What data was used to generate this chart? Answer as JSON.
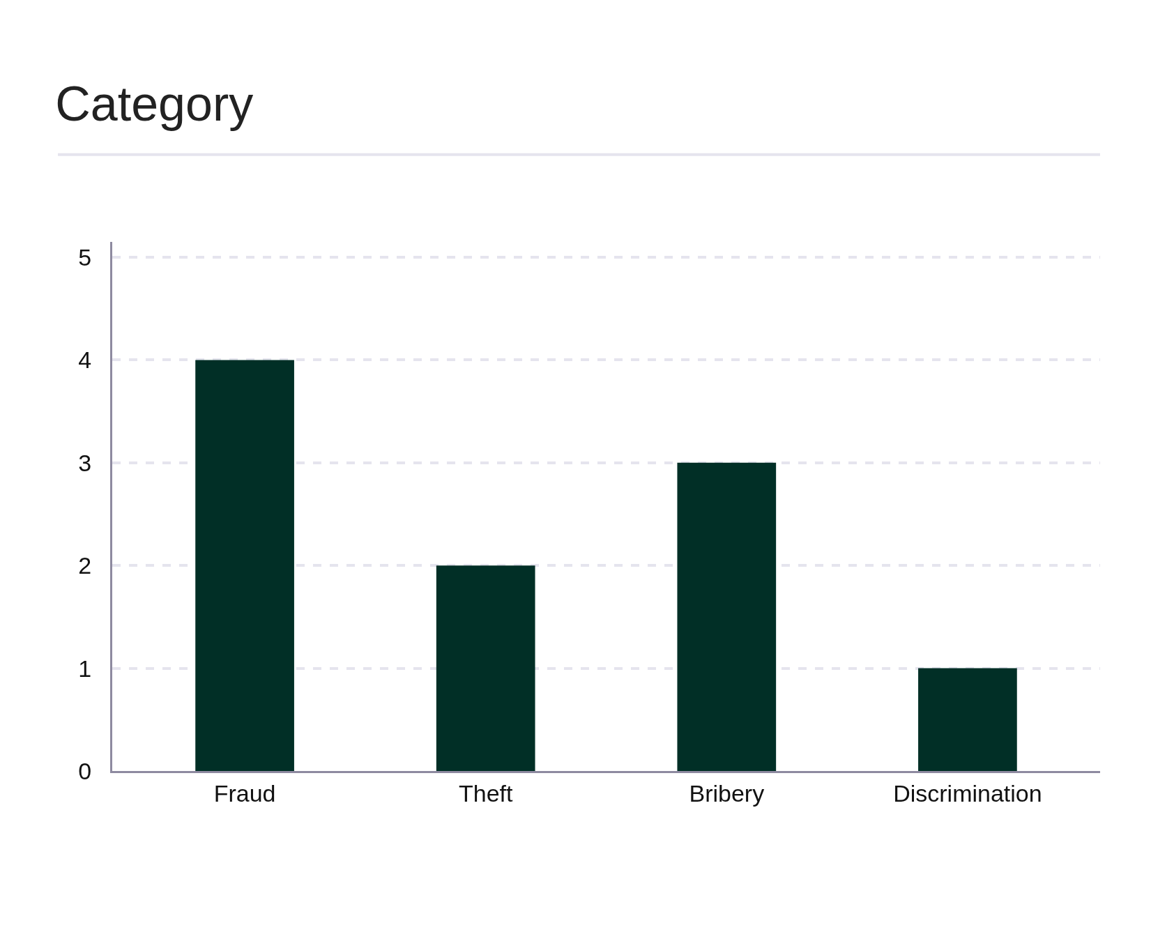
{
  "chart_data": {
    "type": "bar",
    "title": "Category",
    "categories": [
      "Fraud",
      "Theft",
      "Bribery",
      "Discrimination"
    ],
    "values": [
      4,
      2,
      3,
      1
    ],
    "color": "#012f26",
    "ylim": [
      0,
      5.15
    ],
    "yticks": [
      0,
      1,
      2,
      3,
      4,
      5
    ],
    "grid": "y"
  }
}
